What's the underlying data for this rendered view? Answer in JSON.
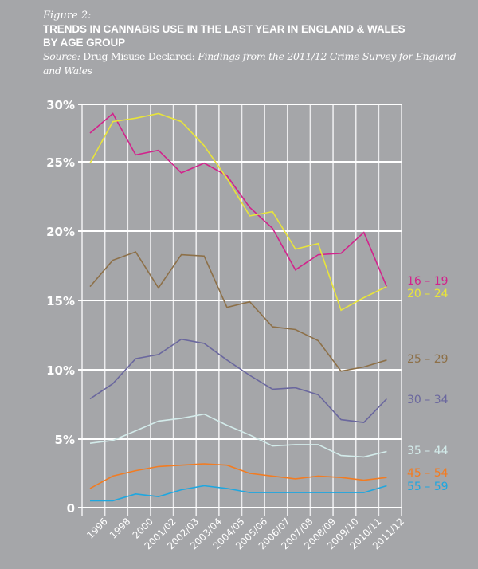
{
  "header": {
    "figure_label": "Figure 2:",
    "title_line1": "TRENDS IN CANNABIS USE IN THE LAST YEAR IN ENGLAND & WALES",
    "title_line2": "BY AGE GROUP",
    "source_prefix": "Source:",
    "source_plain": " Drug Misuse Declared: ",
    "source_italic": "Findings from the 2011/12 Crime Survey for England and Wales"
  },
  "colors": {
    "background": "#a5a6a9",
    "grid": "#ffffff"
  },
  "chart_data": {
    "type": "line",
    "title": "Trends in cannabis use in the last year in England & Wales by age group",
    "xlabel": "",
    "ylabel": "",
    "ylim": [
      0,
      30
    ],
    "y_ticks": [
      {
        "value": 0,
        "label": "0"
      },
      {
        "value": 5,
        "label": "5%"
      },
      {
        "value": 10,
        "label": "10%"
      },
      {
        "value": 15,
        "label": "15%"
      },
      {
        "value": 20,
        "label": "20%"
      },
      {
        "value": 25,
        "label": "25%"
      },
      {
        "value": 30,
        "label": "30%"
      }
    ],
    "grid": true,
    "legend_placement": "right (labels at line ends)",
    "categories": [
      "1996",
      "1998",
      "2000",
      "2001/02",
      "2002/03",
      "2003/04",
      "2004/05",
      "2005/06",
      "2006/07",
      "2007/08",
      "2008/09",
      "2009/10",
      "2010/11",
      "2011/12"
    ],
    "series": [
      {
        "name": "16 – 19",
        "color": "#d2238c",
        "values": [
          27.5,
          29.2,
          25.6,
          26.0,
          24.2,
          24.9,
          24.0,
          21.7,
          20.2,
          17.2,
          18.3,
          18.4,
          19.9,
          16.0
        ]
      },
      {
        "name": "20 – 24",
        "color": "#e8e43a",
        "values": [
          24.9,
          28.5,
          28.8,
          29.2,
          28.5,
          26.4,
          23.8,
          21.1,
          21.4,
          18.7,
          19.1,
          14.3,
          15.2,
          16.0
        ]
      },
      {
        "name": "25 – 29",
        "color": "#8d7048",
        "values": [
          16.0,
          17.9,
          18.5,
          15.9,
          18.3,
          18.2,
          14.5,
          14.9,
          13.1,
          12.9,
          12.1,
          9.9,
          10.2,
          10.7
        ]
      },
      {
        "name": "30 – 34",
        "color": "#6a679e",
        "values": [
          7.9,
          9.0,
          10.8,
          11.1,
          12.2,
          11.9,
          10.7,
          9.6,
          8.6,
          8.7,
          8.2,
          6.4,
          6.2,
          7.9
        ]
      },
      {
        "name": "35 – 44",
        "color": "#d3ebea",
        "values": [
          4.7,
          4.9,
          5.6,
          6.3,
          6.5,
          6.8,
          6.0,
          5.3,
          4.5,
          4.6,
          4.6,
          3.8,
          3.7,
          4.1
        ]
      },
      {
        "name": "45 – 54",
        "color": "#f27c22",
        "values": [
          1.4,
          2.3,
          2.7,
          3.0,
          3.1,
          3.2,
          3.1,
          2.5,
          2.3,
          2.1,
          2.3,
          2.2,
          2.0,
          2.2
        ]
      },
      {
        "name": "55 – 59",
        "color": "#1ea7e0",
        "values": [
          0.5,
          0.5,
          1.0,
          0.8,
          1.3,
          1.6,
          1.4,
          1.1,
          1.1,
          1.1,
          1.1,
          1.1,
          1.1,
          1.6
        ]
      }
    ]
  }
}
